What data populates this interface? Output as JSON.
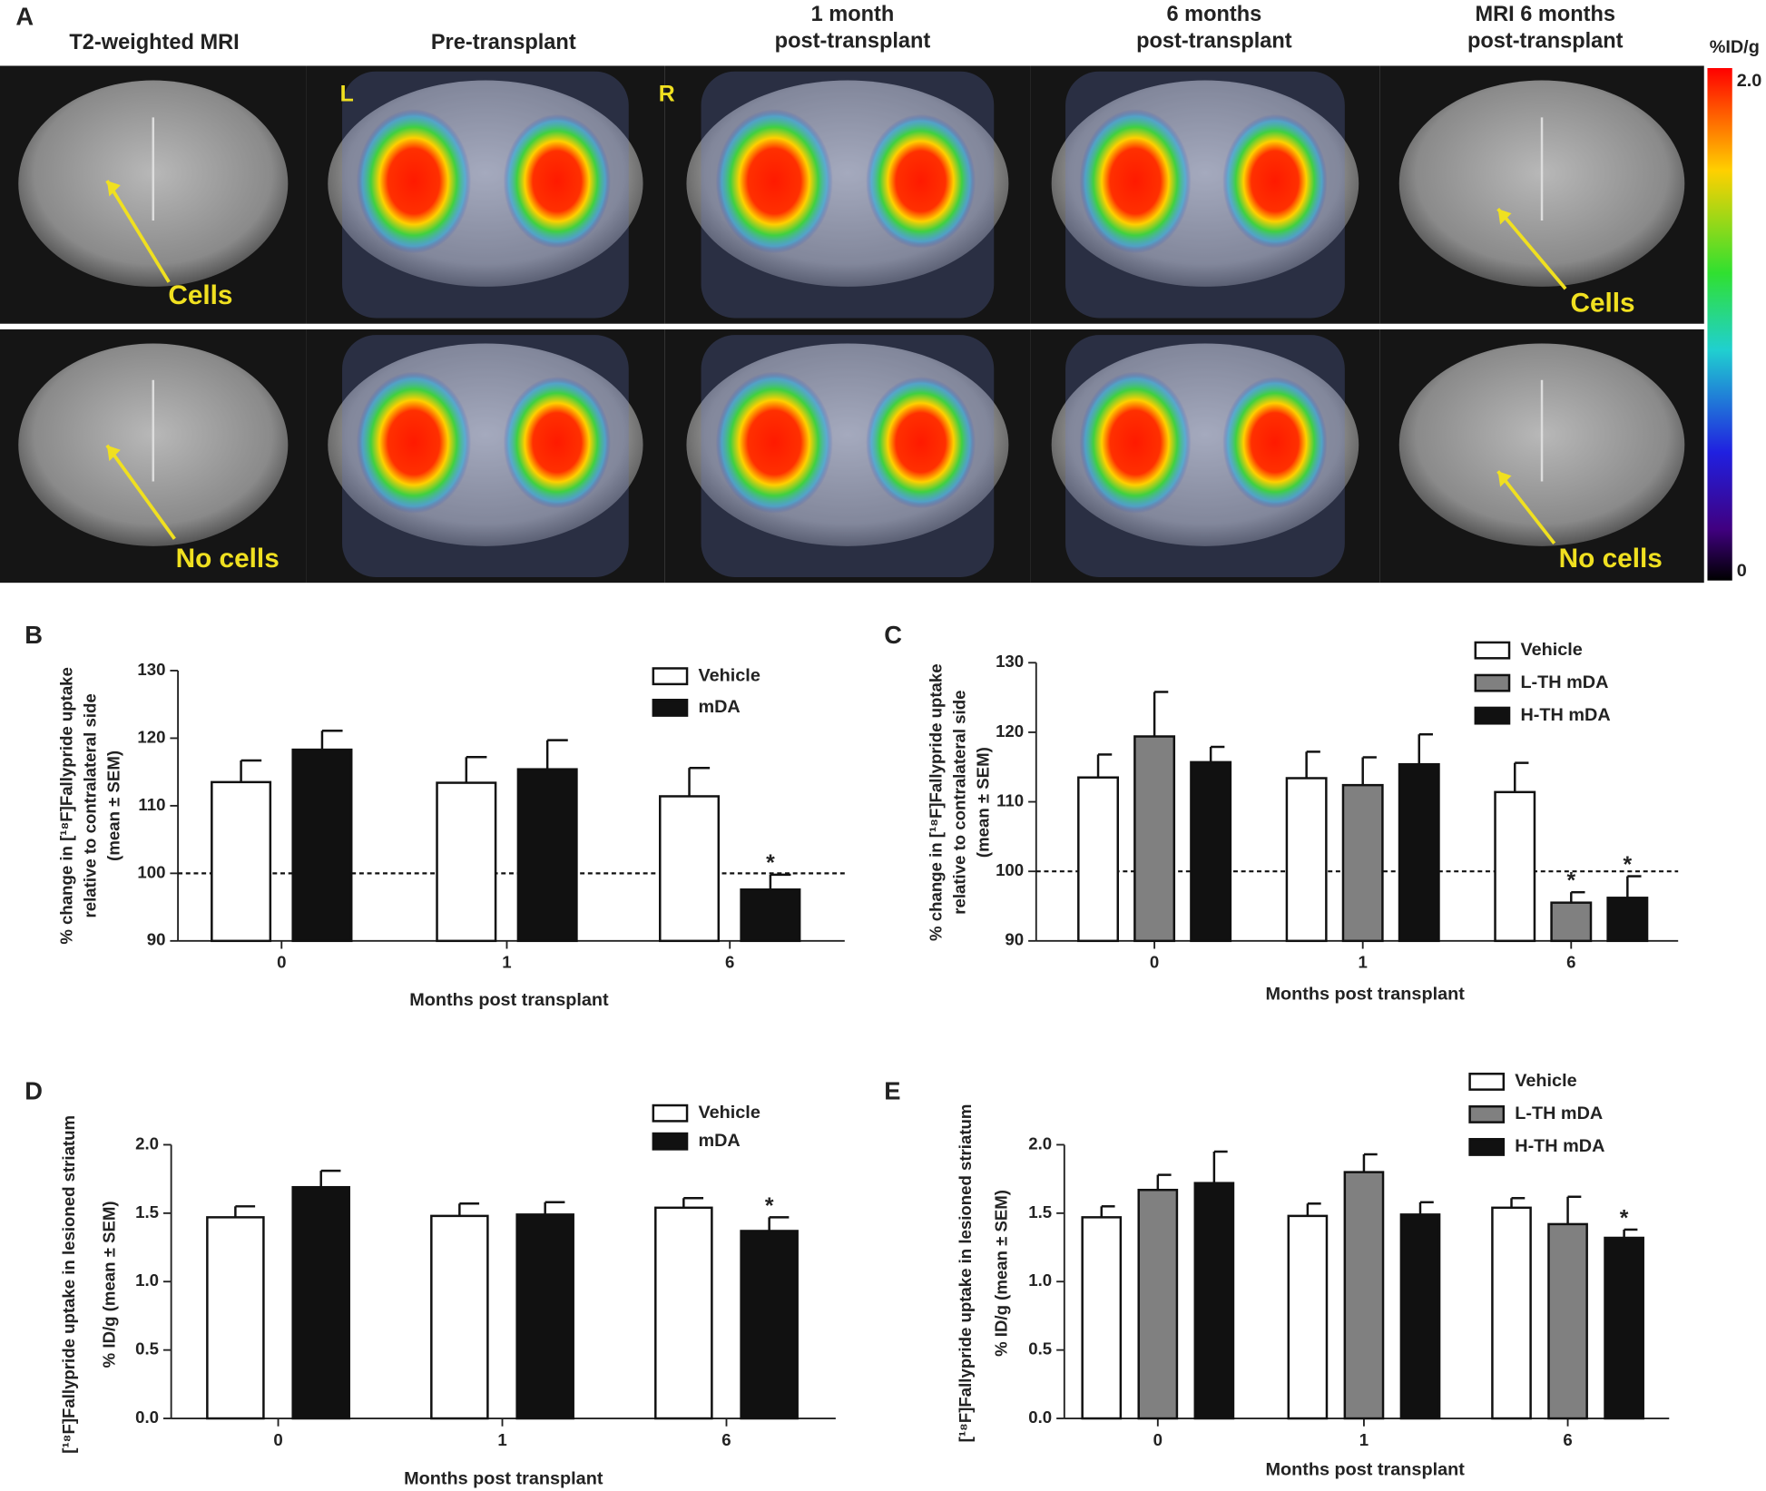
{
  "panel_a": {
    "label": "A",
    "columns": [
      [
        "T2-weighted MRI"
      ],
      [
        "Pre-transplant"
      ],
      [
        "1 month",
        "post-transplant"
      ],
      [
        "6 months",
        "post-transplant"
      ],
      [
        "MRI 6 months",
        "post-transplant"
      ]
    ],
    "side_labels": [
      "L",
      "R"
    ],
    "annotations": [
      "Cells",
      "No cells",
      "Cells",
      "No cells"
    ],
    "colorbar": {
      "label": "%ID/g",
      "lim": [
        0,
        2
      ],
      "ticks": [
        {
          "value": 2,
          "label": "2.0"
        },
        0
      ]
    }
  },
  "chart_data": [
    {
      "type": "bar",
      "panel": "B",
      "x_label": "Months post transplant",
      "y_label": [
        "% change in [¹⁸F]Fallypride uptake",
        "relative to contralateral side",
        "(mean ± SEM)"
      ],
      "categories": [
        "0",
        "1",
        "6"
      ],
      "ylim": [
        90,
        130
      ],
      "yticks": [
        90,
        100,
        110,
        120,
        130
      ],
      "reference_line": 100,
      "series": [
        {
          "name": "Vehicle",
          "color": "#ffffff",
          "values": [
            113.5,
            113.4,
            111.4
          ],
          "errors": [
            3.2,
            3.8,
            4.2
          ],
          "markers": [
            null,
            null,
            null
          ]
        },
        {
          "name": "mDA",
          "color": "#111111",
          "values": [
            118.3,
            115.4,
            97.6
          ],
          "errors": [
            2.8,
            4.3,
            2.2
          ],
          "markers": [
            null,
            null,
            "*"
          ]
        }
      ]
    },
    {
      "type": "bar",
      "panel": "C",
      "x_label": "Months post transplant",
      "y_label": [
        "% change in [¹⁸F]Fallypride uptake",
        "relative to contralateral side",
        "(mean ± SEM)"
      ],
      "categories": [
        "0",
        "1",
        "6"
      ],
      "ylim": [
        90,
        130
      ],
      "yticks": [
        90,
        100,
        110,
        120,
        130
      ],
      "reference_line": 100,
      "series": [
        {
          "name": "Vehicle",
          "color": "#ffffff",
          "values": [
            113.5,
            113.4,
            111.4
          ],
          "errors": [
            3.3,
            3.8,
            4.2
          ],
          "markers": [
            null,
            null,
            null
          ]
        },
        {
          "name": "L-TH mDA",
          "color": "#808080",
          "values": [
            119.4,
            112.4,
            95.5
          ],
          "errors": [
            6.4,
            4.0,
            1.5
          ],
          "markers": [
            null,
            null,
            "*"
          ]
        },
        {
          "name": "H-TH mDA",
          "color": "#111111",
          "values": [
            115.7,
            115.4,
            96.2
          ],
          "errors": [
            2.2,
            4.3,
            3.1
          ],
          "markers": [
            null,
            null,
            "*"
          ]
        }
      ]
    },
    {
      "type": "bar",
      "panel": "D",
      "x_label": "Months post transplant",
      "y_label": [
        "[¹⁸F]Fallypride uptake in lesioned striatum",
        "% ID/g (mean ± SEM)"
      ],
      "categories": [
        "0",
        "1",
        "6"
      ],
      "ylim": [
        0,
        2
      ],
      "yticks": [
        {
          "value": 0,
          "label": "0.0"
        },
        0.5,
        {
          "value": 1,
          "label": "1.0"
        },
        1.5,
        {
          "value": 2,
          "label": "2.0"
        }
      ],
      "series": [
        {
          "name": "Vehicle",
          "color": "#ffffff",
          "values": [
            1.47,
            1.48,
            1.54
          ],
          "errors": [
            0.08,
            0.09,
            0.07
          ],
          "markers": [
            null,
            null,
            null
          ]
        },
        {
          "name": "mDA",
          "color": "#111111",
          "values": [
            1.69,
            1.49,
            1.37
          ],
          "errors": [
            0.12,
            0.09,
            0.1
          ],
          "markers": [
            null,
            null,
            "*"
          ]
        }
      ]
    },
    {
      "type": "bar",
      "panel": "E",
      "x_label": "Months post transplant",
      "y_label": [
        "[¹⁸F]Fallypride uptake in lesioned striatum",
        "% ID/g (mean ± SEM)"
      ],
      "categories": [
        "0",
        "1",
        "6"
      ],
      "ylim": [
        0,
        2
      ],
      "yticks": [
        {
          "value": 0,
          "label": "0.0"
        },
        0.5,
        {
          "value": 1,
          "label": "1.0"
        },
        1.5,
        {
          "value": 2,
          "label": "2.0"
        }
      ],
      "series": [
        {
          "name": "Vehicle",
          "color": "#ffffff",
          "values": [
            1.47,
            1.48,
            1.54
          ],
          "errors": [
            0.08,
            0.09,
            0.07
          ],
          "markers": [
            null,
            null,
            null
          ]
        },
        {
          "name": "L-TH mDA",
          "color": "#808080",
          "values": [
            1.67,
            1.8,
            1.42
          ],
          "errors": [
            0.11,
            0.13,
            0.2
          ],
          "markers": [
            null,
            null,
            null
          ]
        },
        {
          "name": "H-TH mDA",
          "color": "#111111",
          "values": [
            1.72,
            1.49,
            1.32
          ],
          "errors": [
            0.23,
            0.09,
            0.06
          ],
          "markers": [
            null,
            null,
            "*"
          ]
        }
      ]
    }
  ]
}
